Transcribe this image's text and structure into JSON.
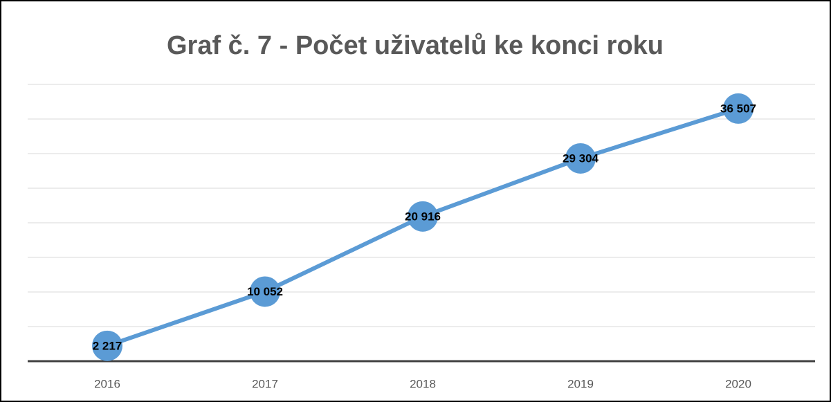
{
  "chart_data": {
    "type": "line",
    "title": "Graf č. 7 - Počet uživatelů ke konci roku",
    "categories": [
      "2016",
      "2017",
      "2018",
      "2019",
      "2020"
    ],
    "series": [
      {
        "name": "Počet uživatelů",
        "color": "#5b9bd5",
        "values": [
          2217,
          10052,
          20916,
          29304,
          36507
        ],
        "value_labels": [
          "2 217",
          "10 052",
          "20 916",
          "29 304",
          "36 507"
        ]
      }
    ],
    "ylim": [
      0,
      40000
    ],
    "yticks": [
      0,
      5000,
      10000,
      15000,
      20000,
      25000,
      30000,
      35000,
      40000
    ],
    "grid": true,
    "legend": false
  }
}
